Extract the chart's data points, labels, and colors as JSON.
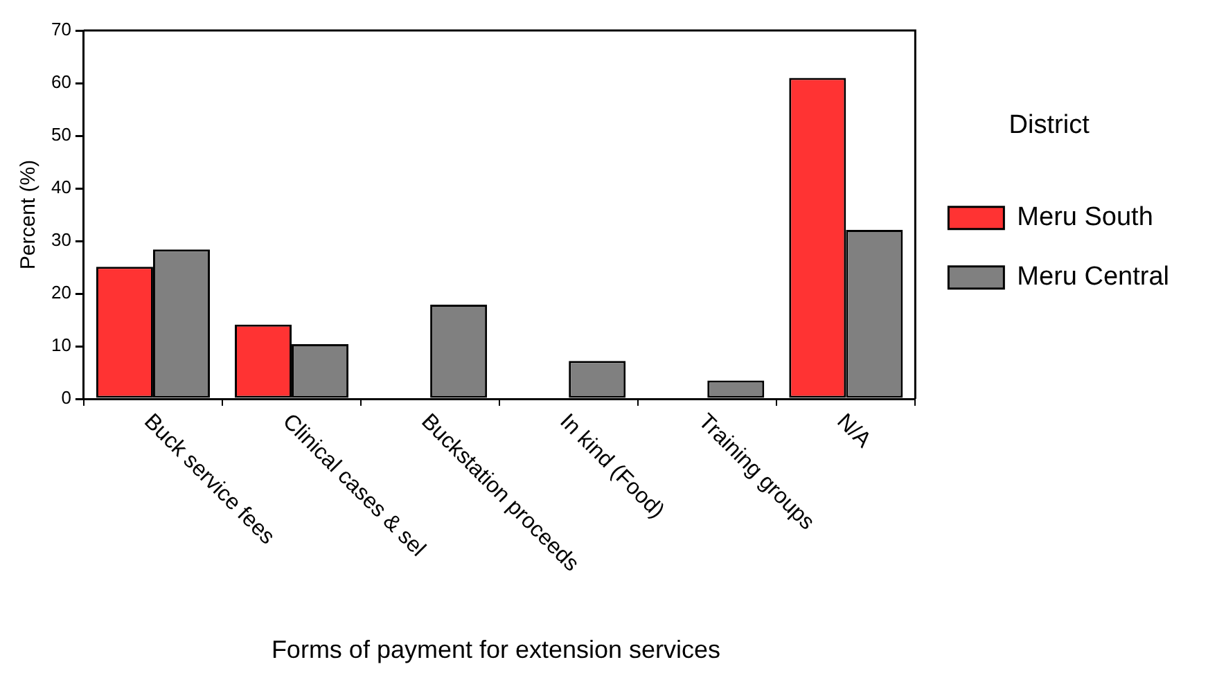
{
  "chart_data": {
    "type": "bar",
    "xlabel": "Forms of payment for extension services",
    "ylabel": "Percent (%)",
    "legend_title": "District",
    "categories": [
      "Buck service fees",
      "Clinical cases & sel",
      "Buckstation proceeds",
      "In kind (Food)",
      "Training groups",
      "N/A"
    ],
    "series": [
      {
        "name": "Meru South",
        "color": "#ff3333",
        "values": [
          25.1,
          14.1,
          null,
          null,
          null,
          61.0
        ]
      },
      {
        "name": "Meru Central",
        "color": "#808080",
        "values": [
          28.4,
          10.4,
          17.9,
          7.2,
          3.5,
          32.1
        ]
      }
    ],
    "ylim": [
      0,
      70
    ],
    "yticks": [
      0,
      10,
      20,
      30,
      40,
      50,
      60,
      70
    ],
    "grid": false,
    "legend": "right"
  }
}
